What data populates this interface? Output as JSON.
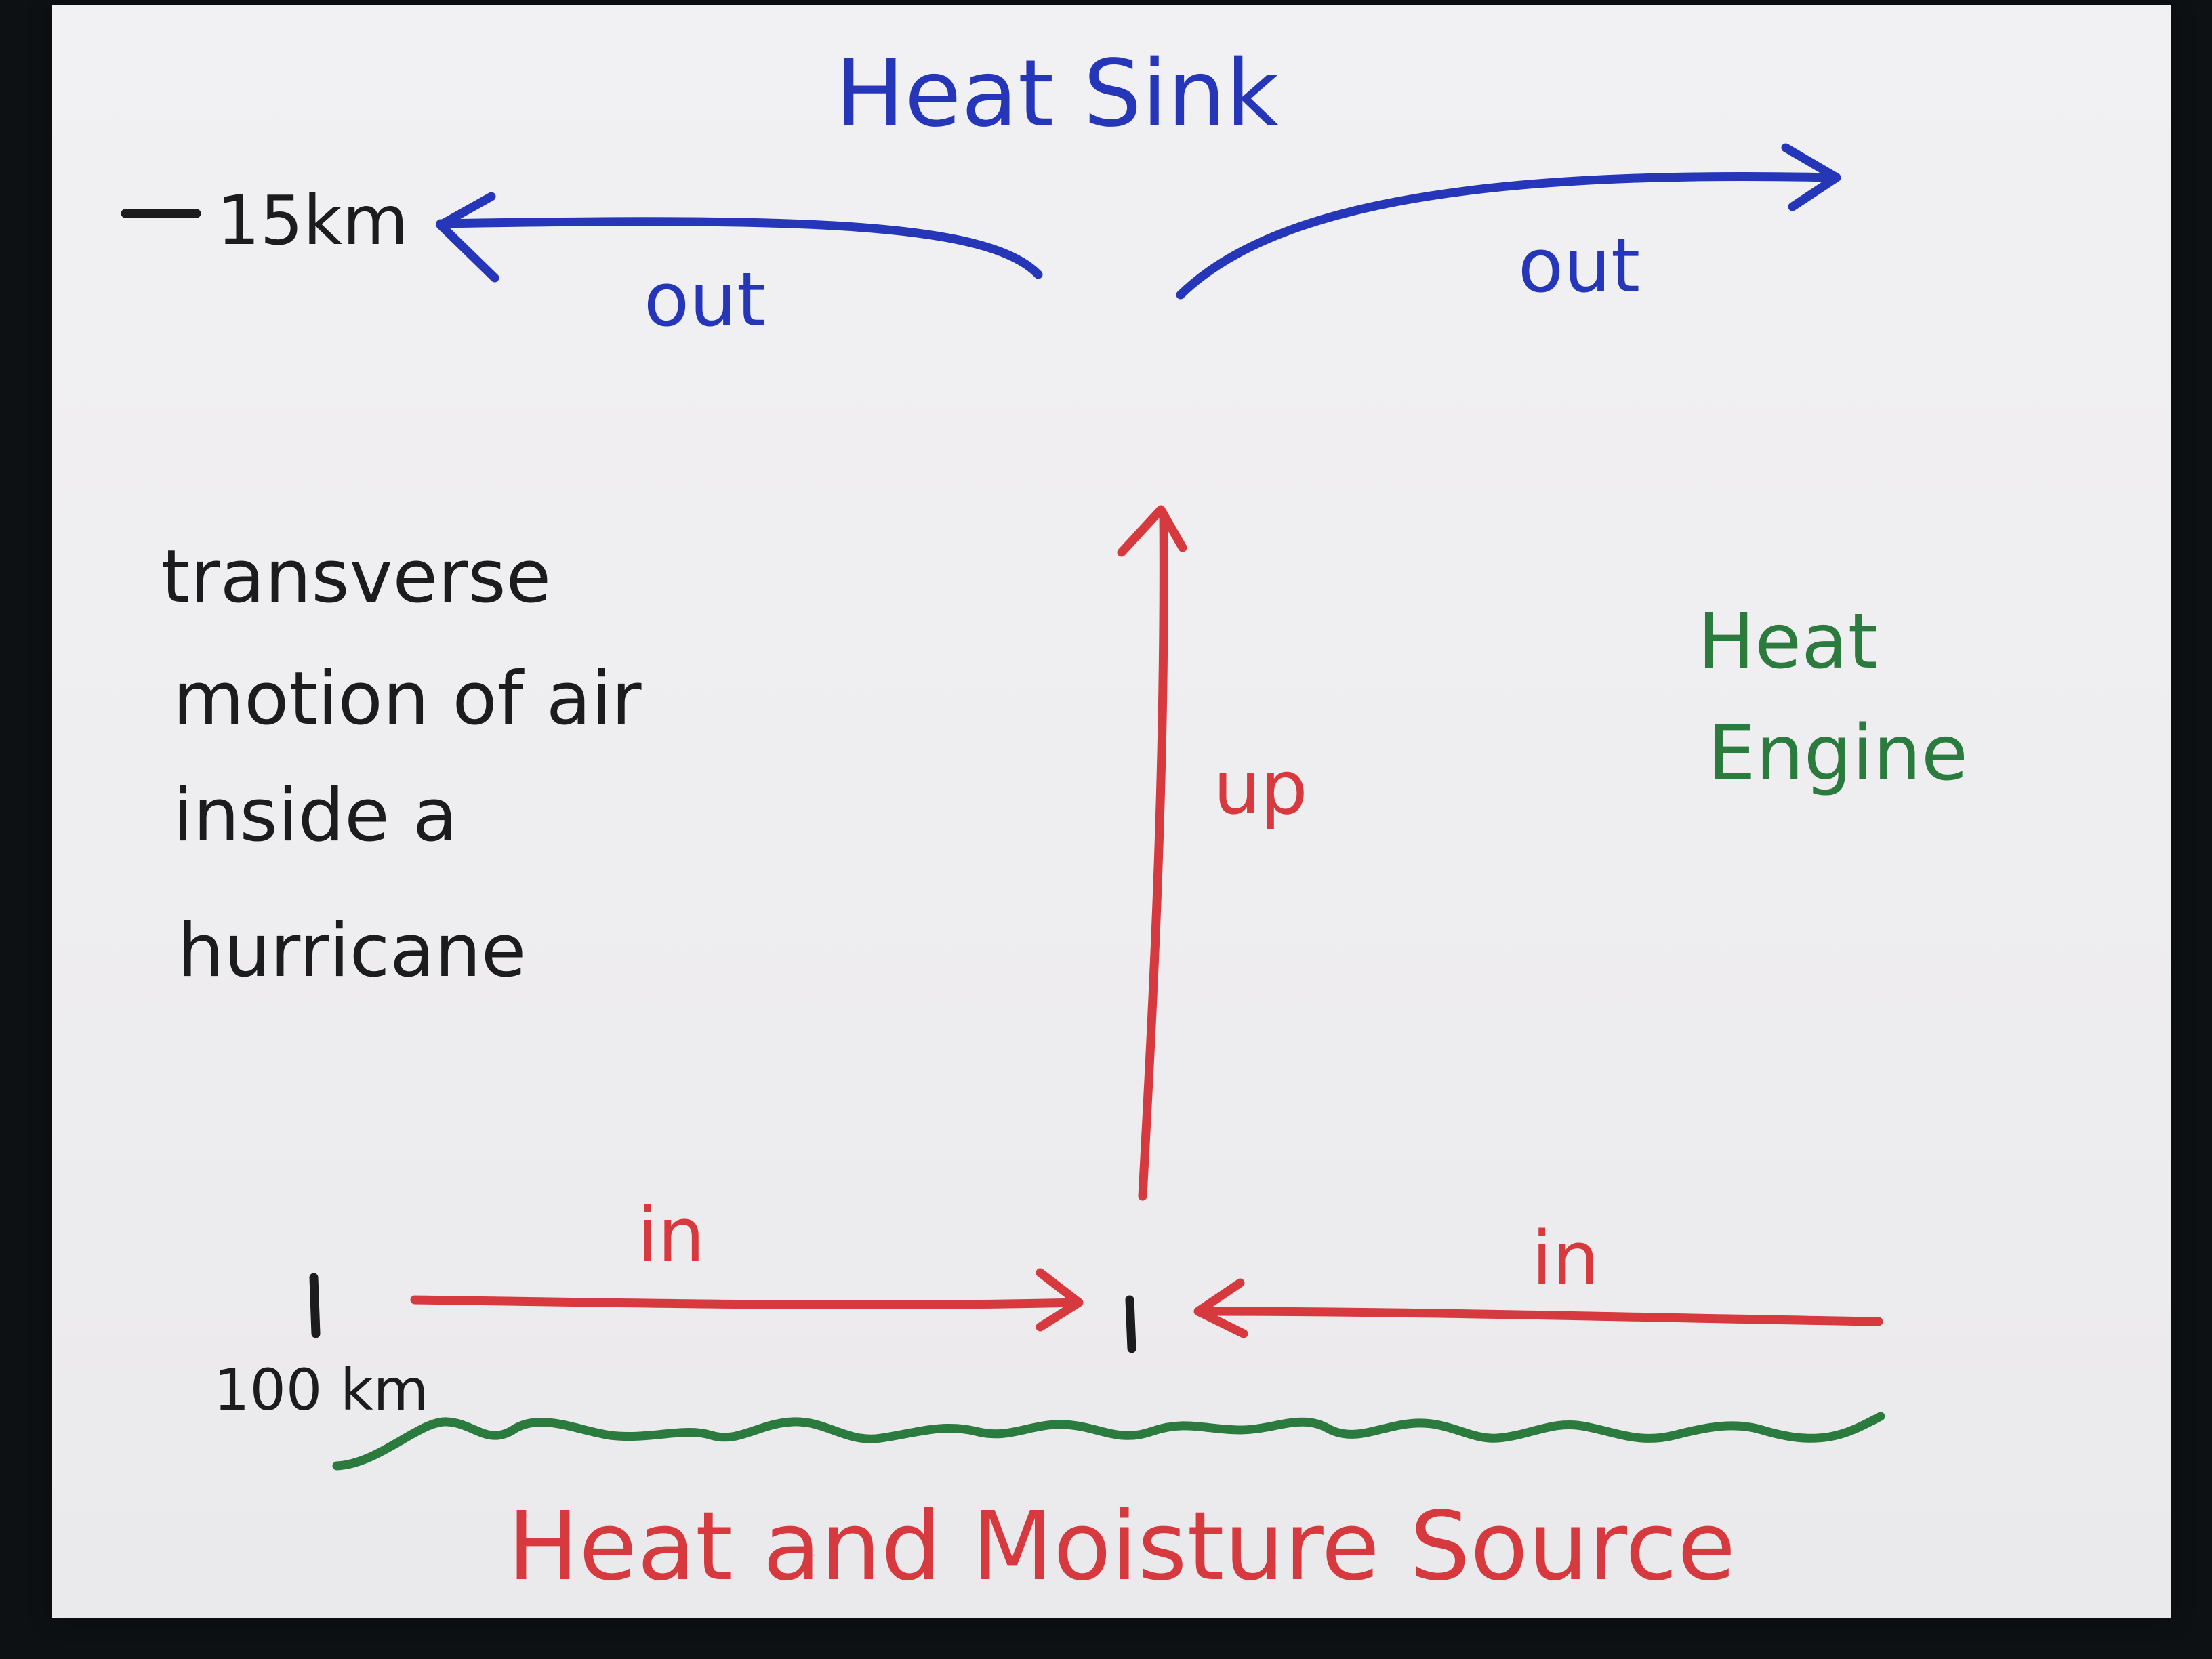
{
  "colors": {
    "blue": "#2536b8",
    "red": "#d63a3e",
    "green": "#2b7a3e",
    "black": "#1c1c1e"
  },
  "labels": {
    "heat_sink": "Heat Sink",
    "out_left": "out",
    "out_right": "out",
    "altitude": "15km",
    "up": "up",
    "heat_engine_line1": "Heat",
    "heat_engine_line2": "Engine",
    "description_line1": "transverse",
    "description_line2": "motion of air",
    "description_line3": "inside a",
    "description_line4": "hurricane",
    "in_left": "in",
    "in_right": "in",
    "distance": "100 km",
    "heat_source": "Heat and Moisture Source"
  }
}
